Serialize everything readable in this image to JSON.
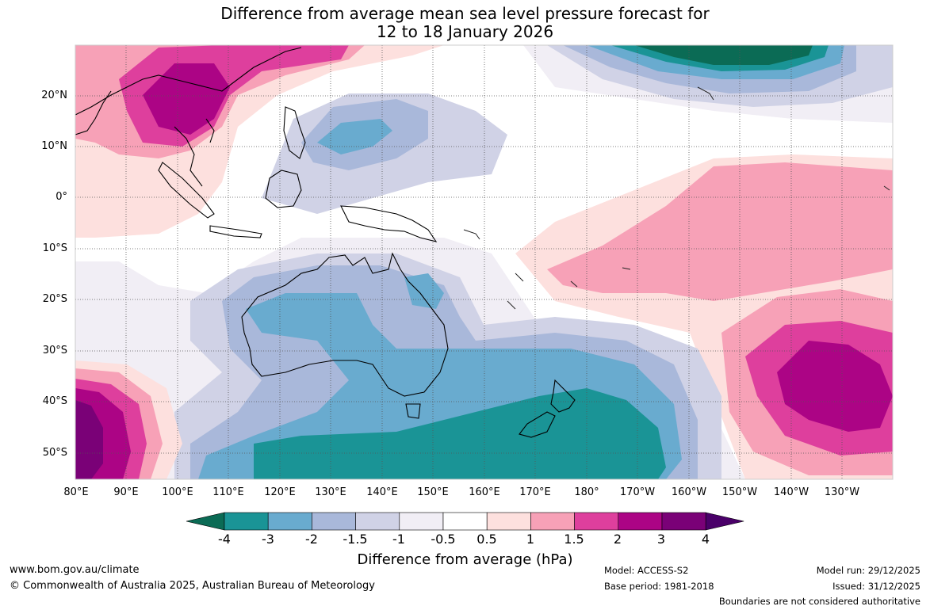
{
  "title": {
    "line1": "Difference from average mean sea level pressure forecast for",
    "line2": "12 to 18 January 2026"
  },
  "map": {
    "lat_labels": [
      "20°N",
      "10°N",
      "0°",
      "10°S",
      "20°S",
      "30°S",
      "40°S",
      "50°S"
    ],
    "lon_labels": [
      "80°E",
      "90°E",
      "100°E",
      "110°E",
      "120°E",
      "130°E",
      "140°E",
      "150°E",
      "160°E",
      "170°E",
      "180°",
      "170°W",
      "160°W",
      "150°W",
      "140°W",
      "130°W"
    ]
  },
  "colorbar": {
    "title": "Difference from average (hPa)",
    "tick_labels": [
      "-4",
      "-3",
      "-2",
      "-1.5",
      "-1",
      "-0.5",
      "0.5",
      "1",
      "1.5",
      "2",
      "3",
      "4"
    ],
    "colors": [
      "#0b6b55",
      "#1a9496",
      "#69abcf",
      "#a9b8da",
      "#d0d2e6",
      "#f1eef5",
      "#ffffff",
      "#fde0de",
      "#f7a1b7",
      "#de3f9d",
      "#ac0485",
      "#7a0177",
      "#4a0069"
    ]
  },
  "footer": {
    "website": "www.bom.gov.au/climate",
    "copyright": "© Commonwealth of Australia 2025, Australian Bureau of Meteorology",
    "model": "Model: ACCESS-S2",
    "base_period": "Base period: 1981-2018",
    "model_run": "Model run: 29/12/2025",
    "issued": "Issued: 31/12/2025",
    "disclaimer": "Boundaries are not considered authoritative"
  }
}
